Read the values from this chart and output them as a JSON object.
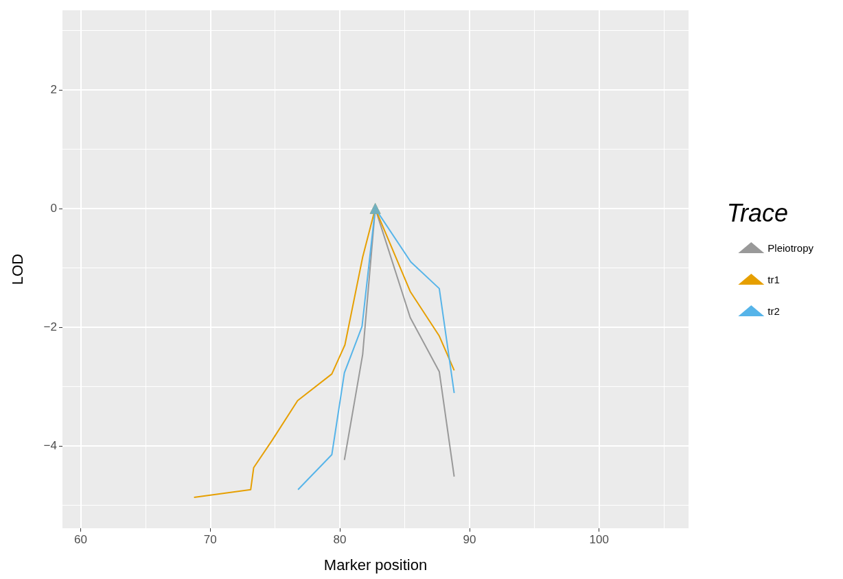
{
  "chart_data": {
    "type": "line",
    "xlabel": "Marker position",
    "ylabel": "LOD",
    "legend_title": "Trace",
    "xlim": [
      58.6,
      106.9
    ],
    "xticks": [
      60,
      70,
      80,
      90,
      100
    ],
    "ylim": [
      -5.39,
      3.34
    ],
    "yticks": [
      -4,
      -2,
      0,
      2
    ],
    "grid": true,
    "legend": "right",
    "line_style": "solid",
    "series": [
      {
        "name": "Pleiotropy",
        "color": "#999999",
        "x": [
          80.35,
          81.76,
          82.73,
          85.43,
          87.67,
          88.82
        ],
        "values": [
          -4.24,
          -2.46,
          0,
          -1.84,
          -2.75,
          -4.52
        ]
      },
      {
        "name": "tr1",
        "color": "#e69f00",
        "x": [
          68.75,
          73.12,
          73.35,
          74.8,
          76.74,
          79.38,
          80.39,
          81.76,
          82.73,
          85.43,
          87.67,
          88.82
        ],
        "values": [
          -4.87,
          -4.74,
          -4.37,
          -3.9,
          -3.24,
          -2.79,
          -2.3,
          -0.82,
          0,
          -1.4,
          -2.15,
          -2.73
        ]
      },
      {
        "name": "tr2",
        "color": "#56b4e9",
        "x": [
          76.77,
          79.38,
          80.35,
          81.71,
          82.73,
          85.47,
          87.67,
          88.82
        ],
        "values": [
          -4.74,
          -4.15,
          -2.77,
          -1.99,
          0,
          -0.9,
          -1.35,
          -3.11
        ]
      },
      {
        "type": "scatter",
        "marker": "triangle",
        "color": "#999999",
        "x": [
          82.73
        ],
        "values": [
          0
        ]
      },
      {
        "type": "scatter",
        "marker": "triangle",
        "color": "#e69f00",
        "x": [
          82.73
        ],
        "values": [
          0
        ]
      },
      {
        "type": "scatter",
        "marker": "triangle",
        "color": "#56b4e9",
        "x": [
          82.73
        ],
        "values": [
          0
        ]
      }
    ]
  }
}
